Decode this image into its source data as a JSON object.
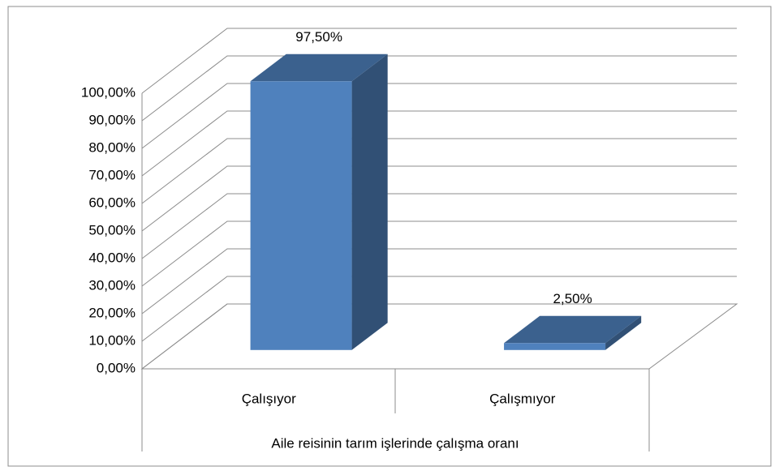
{
  "chart_data": {
    "type": "bar3d",
    "categories": [
      "Çalışıyor",
      "Çalışmıyor"
    ],
    "values": [
      97.5,
      2.5
    ],
    "value_labels": [
      "97,50%",
      "2,50%"
    ],
    "x_label": "Aile reisinin tarım işlerinde çalışma oranı",
    "color": "#4f81bd",
    "ylim": [
      0,
      100
    ],
    "yticks": [
      {
        "value": 0,
        "label": "0,00%"
      },
      {
        "value": 10,
        "label": "10,00%"
      },
      {
        "value": 20,
        "label": "20,00%"
      },
      {
        "value": 30,
        "label": "30,00%"
      },
      {
        "value": 40,
        "label": "40,00%"
      },
      {
        "value": 50,
        "label": "50,00%"
      },
      {
        "value": 60,
        "label": "60,00%"
      },
      {
        "value": 70,
        "label": "70,00%"
      },
      {
        "value": 80,
        "label": "80,00%"
      },
      {
        "value": 90,
        "label": "90,00%"
      },
      {
        "value": 100,
        "label": "100,00%"
      }
    ],
    "grid": true
  }
}
